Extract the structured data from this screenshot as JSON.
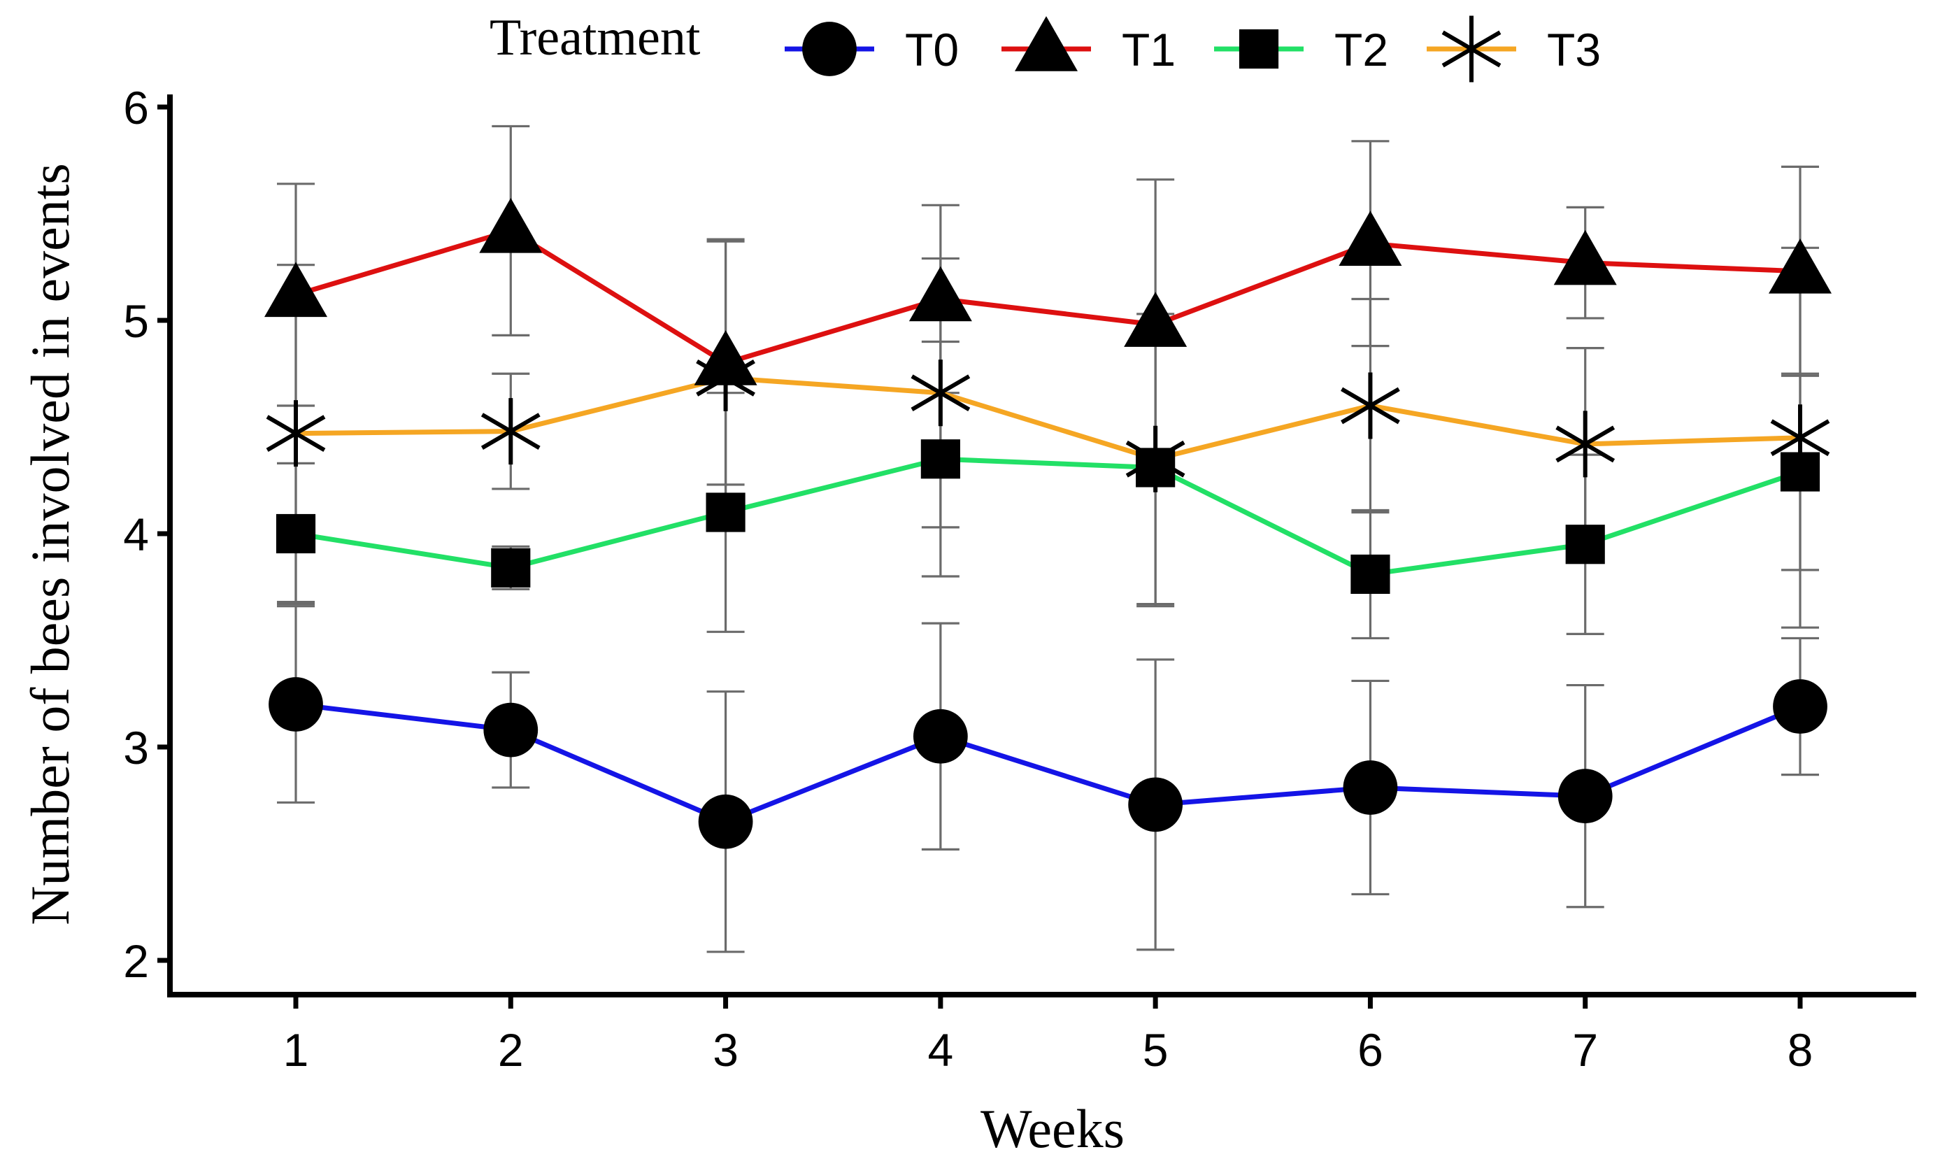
{
  "chart_data": {
    "type": "line",
    "xlabel": "Weeks",
    "ylabel": "Number of bees involved in events",
    "x": [
      1,
      2,
      3,
      4,
      5,
      6,
      7,
      8
    ],
    "xlim": [
      0.4,
      8.55
    ],
    "ylim": [
      1.85,
      6.1
    ],
    "yticks": [
      2,
      3,
      4,
      5,
      6
    ],
    "legend": {
      "title": "Treatment",
      "position": "top"
    },
    "grid": false,
    "series": [
      {
        "name": "T0",
        "color": "#1414e6",
        "marker": "circle",
        "values": [
          3.2,
          3.08,
          2.65,
          3.05,
          2.73,
          2.81,
          2.77,
          3.19
        ],
        "err": [
          0.46,
          0.27,
          0.61,
          0.53,
          0.68,
          0.5,
          0.52,
          0.32
        ]
      },
      {
        "name": "T1",
        "color": "#dd1010",
        "marker": "triangle",
        "values": [
          5.12,
          5.42,
          4.8,
          5.1,
          4.98,
          5.36,
          5.27,
          5.23
        ],
        "err": [
          0.52,
          0.49,
          0.57,
          0.44,
          0.68,
          0.48,
          0.26,
          0.49
        ]
      },
      {
        "name": "T2",
        "color": "#22e066",
        "marker": "square",
        "values": [
          4.0,
          3.84,
          4.1,
          4.35,
          4.31,
          3.81,
          3.95,
          4.29
        ],
        "err": [
          0.33,
          0.1,
          0.56,
          0.55,
          0.65,
          0.3,
          0.42,
          0.46
        ]
      },
      {
        "name": "T3",
        "color": "#f5a623",
        "marker": "asterisk",
        "values": [
          4.47,
          4.48,
          4.73,
          4.66,
          4.35,
          4.6,
          4.42,
          4.45
        ],
        "err": [
          0.79,
          0.27,
          0.65,
          0.63,
          0.68,
          0.5,
          0.45,
          0.89
        ]
      }
    ]
  }
}
